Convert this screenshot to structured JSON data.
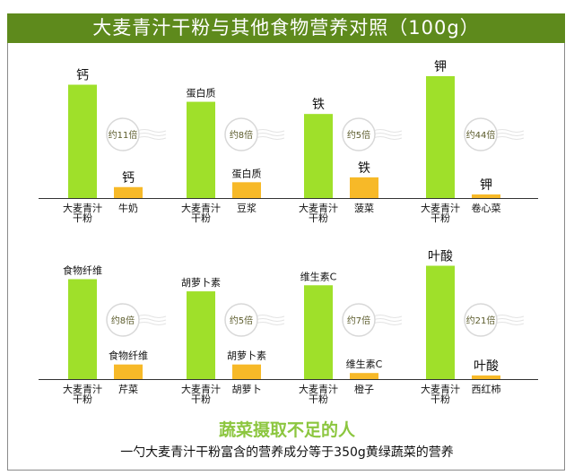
{
  "title": "大麦青汁干粉与其他食物营养对照（100g）",
  "colors": {
    "header": "#5e8a1c",
    "barley": "#9fe02a",
    "other": "#f7b928",
    "footer_title": "#8cc63f"
  },
  "chart_data": {
    "type": "bar",
    "title": "大麦青汁干粉与其他食物营养对照（100g）",
    "grid": false,
    "note": "no value axis; bar heights are relative",
    "groups": [
      {
        "nutrient": "钙",
        "barley_label": "大麦青汁干粉",
        "other_label": "牛奶",
        "ratio_text": "约11倍",
        "ratio": 11,
        "barley_value": 93,
        "other_value": 9
      },
      {
        "nutrient": "蛋白质",
        "barley_label": "大麦青汁干粉",
        "other_label": "豆浆",
        "ratio_text": "约8倍",
        "ratio": 8,
        "barley_value": 79,
        "other_value": 13
      },
      {
        "nutrient": "铁",
        "barley_label": "大麦青汁干粉",
        "other_label": "菠菜",
        "ratio_text": "约5倍",
        "ratio": 5,
        "barley_value": 69,
        "other_value": 17
      },
      {
        "nutrient": "钾",
        "barley_label": "大麦青汁干粉",
        "other_label": "卷心菜",
        "ratio_text": "约44倍",
        "ratio": 44,
        "barley_value": 100,
        "other_value": 3
      },
      {
        "nutrient": "食物纤维",
        "barley_label": "大麦青汁干粉",
        "other_label": "芹菜",
        "ratio_text": "约8倍",
        "ratio": 8,
        "barley_value": 82,
        "other_value": 12
      },
      {
        "nutrient": "胡萝卜素",
        "barley_label": "大麦青汁干粉",
        "other_label": "胡萝卜",
        "ratio_text": "约5倍",
        "ratio": 5,
        "barley_value": 72,
        "other_value": 12
      },
      {
        "nutrient": "维生素C",
        "barley_label": "大麦青汁干粉",
        "other_label": "橙子",
        "ratio_text": "约7倍",
        "ratio": 7,
        "barley_value": 77,
        "other_value": 5
      },
      {
        "nutrient": "叶酸",
        "barley_label": "大麦青汁干粉",
        "other_label": "西红柿",
        "ratio_text": "约21倍",
        "ratio": 21,
        "barley_value": 93,
        "other_value": 3
      }
    ]
  },
  "footer": {
    "title": "蔬菜摄取不足的人",
    "subtitle": "一勺大麦青汁干粉富含的营养成分等于350g黄绿蔬菜的营养"
  }
}
